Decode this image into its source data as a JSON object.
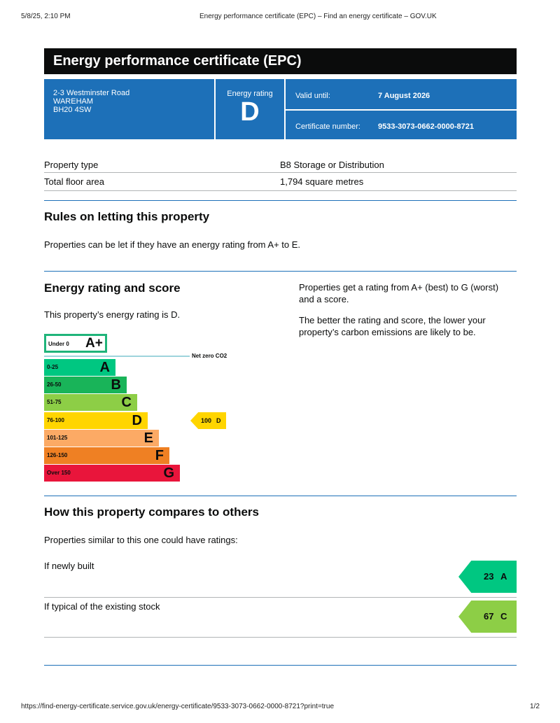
{
  "browser": {
    "datetime": "5/8/25, 2:10 PM",
    "title": "Energy performance certificate (EPC) – Find an energy certificate – GOV.UK",
    "url": "https://find-energy-certificate.service.gov.uk/energy-certificate/9533-3073-0662-0000-8721?print=true",
    "page": "1/2"
  },
  "header": {
    "title": "Energy performance certificate (EPC)"
  },
  "summary": {
    "address": [
      "2-3 Westminster Road",
      "WAREHAM",
      "BH20 4SW"
    ],
    "rating_label": "Energy rating",
    "rating": "D",
    "valid_label": "Valid until:",
    "valid_value": "7 August 2026",
    "cert_label": "Certificate number:",
    "cert_value": "9533-3073-0662-0000-8721"
  },
  "details": [
    {
      "label": "Property type",
      "value": "B8 Storage or Distribution"
    },
    {
      "label": "Total floor area",
      "value": "1,794 square metres"
    }
  ],
  "letting": {
    "title": "Rules on letting this property",
    "text": "Properties can be let if they have an energy rating from A+ to E."
  },
  "rating": {
    "title": "Energy rating and score",
    "text": "This property’s energy rating is D.",
    "side1": "Properties get a rating from A+ (best) to G (worst) and a score.",
    "side2": "The better the rating and score, the lower your property’s carbon emissions are likely to be.",
    "aplus": {
      "range": "Under 0",
      "letter": "A+",
      "color": "#1fb47a"
    },
    "netzero": "Net zero CO2",
    "bands": [
      {
        "range": "0-25",
        "letter": "A",
        "color": "#00c781"
      },
      {
        "range": "26-50",
        "letter": "B",
        "color": "#19b459"
      },
      {
        "range": "51-75",
        "letter": "C",
        "color": "#8dce46"
      },
      {
        "range": "76-100",
        "letter": "D",
        "color": "#ffd500"
      },
      {
        "range": "101-125",
        "letter": "E",
        "color": "#fcaa65"
      },
      {
        "range": "126-150",
        "letter": "F",
        "color": "#ef8023"
      },
      {
        "range": "Over 150",
        "letter": "G",
        "color": "#e9153b"
      }
    ],
    "current": {
      "score": "100",
      "letter": "D",
      "color": "#ffd500"
    }
  },
  "compare": {
    "title": "How this property compares to others",
    "text": "Properties similar to this one could have ratings:",
    "items": [
      {
        "label": "If newly built",
        "score": "23",
        "letter": "A",
        "color": "#00c781"
      },
      {
        "label": "If typical of the existing stock",
        "score": "67",
        "letter": "C",
        "color": "#8dce46"
      }
    ]
  }
}
